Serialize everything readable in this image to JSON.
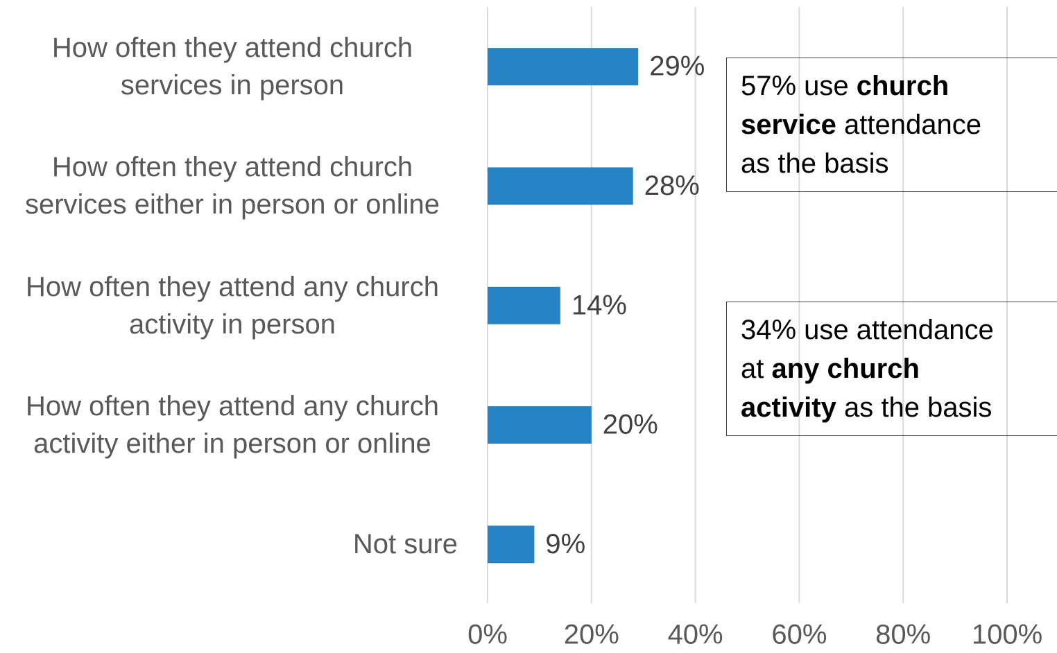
{
  "chart_data": {
    "type": "hbar",
    "categories": [
      "How often they attend church services in person",
      "How often they attend church services either in person or online",
      "How often they attend any church activity in person",
      "How often they attend any church activity either in person or online",
      "Not sure"
    ],
    "values": [
      29,
      28,
      14,
      20,
      9
    ],
    "value_labels": [
      "29%",
      "28%",
      "14%",
      "20%",
      "9%"
    ],
    "color": "#2683c6",
    "xlim": [
      0,
      100
    ],
    "xticks": [
      {
        "value": 0,
        "label": "0%"
      },
      {
        "value": 20,
        "label": "20%"
      },
      {
        "value": 40,
        "label": "40%"
      },
      {
        "value": 60,
        "label": "60%"
      },
      {
        "value": 80,
        "label": "80%"
      },
      {
        "value": 100,
        "label": "100%"
      }
    ],
    "grid": true,
    "annotations": [
      {
        "lines": [
          [
            {
              "text": "57% use "
            },
            {
              "text": "church",
              "bold": true
            }
          ],
          [
            {
              "text": "service",
              "bold": true
            },
            {
              "text": " attendance"
            }
          ],
          [
            {
              "text": "as the basis"
            }
          ]
        ]
      },
      {
        "lines": [
          [
            {
              "text": "34% use attendance"
            }
          ],
          [
            {
              "text": "at "
            },
            {
              "text": "any church",
              "bold": true
            }
          ],
          [
            {
              "text": "activity",
              "bold": true
            },
            {
              "text": " as the basis"
            }
          ]
        ]
      }
    ]
  }
}
